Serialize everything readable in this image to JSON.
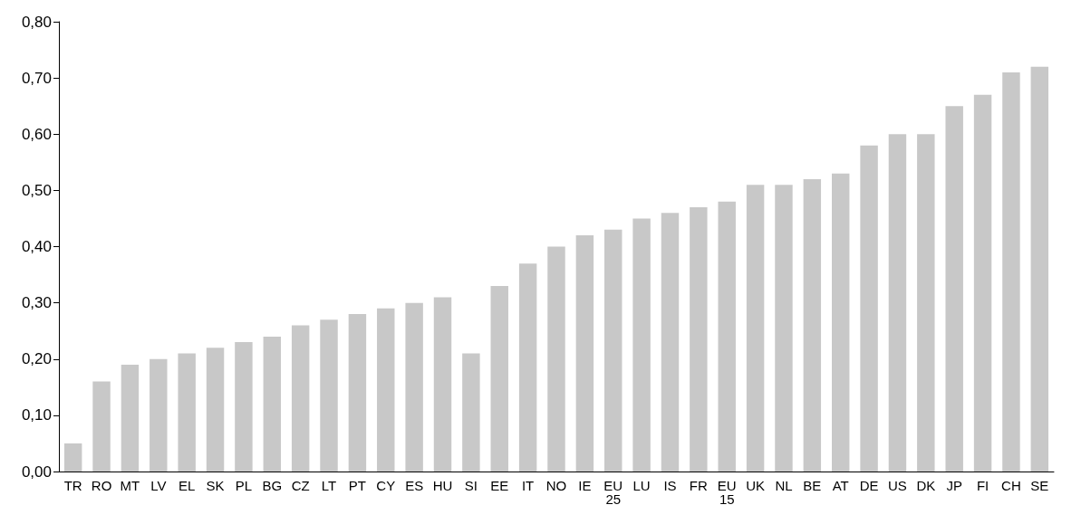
{
  "chart_data": {
    "type": "bar",
    "categories": [
      "TR",
      "RO",
      "MT",
      "LV",
      "EL",
      "SK",
      "PL",
      "BG",
      "CZ",
      "LT",
      "PT",
      "CY",
      "ES",
      "HU",
      "SI",
      "EE",
      "IT",
      "NO",
      "IE",
      "EU\n25",
      "LU",
      "IS",
      "FR",
      "EU\n15",
      "UK",
      "NL",
      "BE",
      "AT",
      "DE",
      "US",
      "DK",
      "JP",
      "FI",
      "CH",
      "SE"
    ],
    "values": [
      0.05,
      0.16,
      0.19,
      0.2,
      0.21,
      0.22,
      0.23,
      0.24,
      0.26,
      0.27,
      0.28,
      0.29,
      0.3,
      0.31,
      0.21,
      0.33,
      0.37,
      0.4,
      0.42,
      0.43,
      0.45,
      0.46,
      0.47,
      0.48,
      0.51,
      0.51,
      0.52,
      0.53,
      0.58,
      0.6,
      0.6,
      0.65,
      0.67,
      0.71,
      0.72
    ],
    "color": "#c8c8c8",
    "ylim": [
      0,
      0.8
    ],
    "yticks": [
      {
        "value": 0,
        "label": "0,00"
      },
      {
        "value": 0.1,
        "label": "0,10"
      },
      {
        "value": 0.2,
        "label": "0,20"
      },
      {
        "value": 0.3,
        "label": "0,30"
      },
      {
        "value": 0.4,
        "label": "0,40"
      },
      {
        "value": 0.5,
        "label": "0,50"
      },
      {
        "value": 0.6,
        "label": "0,60"
      },
      {
        "value": 0.7,
        "label": "0,70"
      },
      {
        "value": 0.8,
        "label": "0,80"
      }
    ],
    "grid": false
  }
}
